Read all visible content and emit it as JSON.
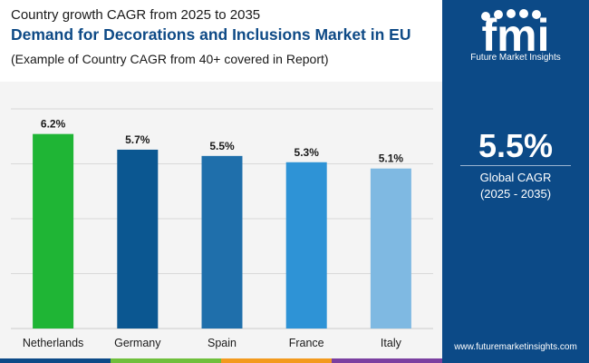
{
  "header": {
    "subtitle": "Country growth CAGR from 2025 to 2035",
    "title": "Demand for Decorations and Inclusions Market in EU",
    "note": "(Example of Country CAGR from 40+ covered in Report)"
  },
  "sidebar": {
    "logo_text": "fmi",
    "logo_tagline": "Future Market Insights",
    "big_value": "5.5%",
    "cagr_label": "Global CAGR",
    "cagr_period": "(2025 - 2035)",
    "website": "www.futuremarketinsights.com"
  },
  "colors": {
    "brand": "#0c4a87",
    "title": "#0e4a86",
    "strip": [
      "#0c4a87",
      "#6fbf3c",
      "#f39a1e",
      "#7b3fa0"
    ]
  },
  "chart_data": {
    "type": "bar",
    "categories": [
      "Netherlands",
      "Germany",
      "Spain",
      "France",
      "Italy"
    ],
    "values": [
      6.2,
      5.7,
      5.5,
      5.3,
      5.1
    ],
    "labels": [
      "6.2%",
      "5.7%",
      "5.5%",
      "5.3%",
      "5.1%"
    ],
    "colors": [
      "#1fb535",
      "#0b5791",
      "#1f6fab",
      "#2e93d6",
      "#7fb9e2"
    ],
    "ylim": [
      0,
      7
    ],
    "grid": true,
    "title": "",
    "xlabel": "",
    "ylabel": ""
  }
}
